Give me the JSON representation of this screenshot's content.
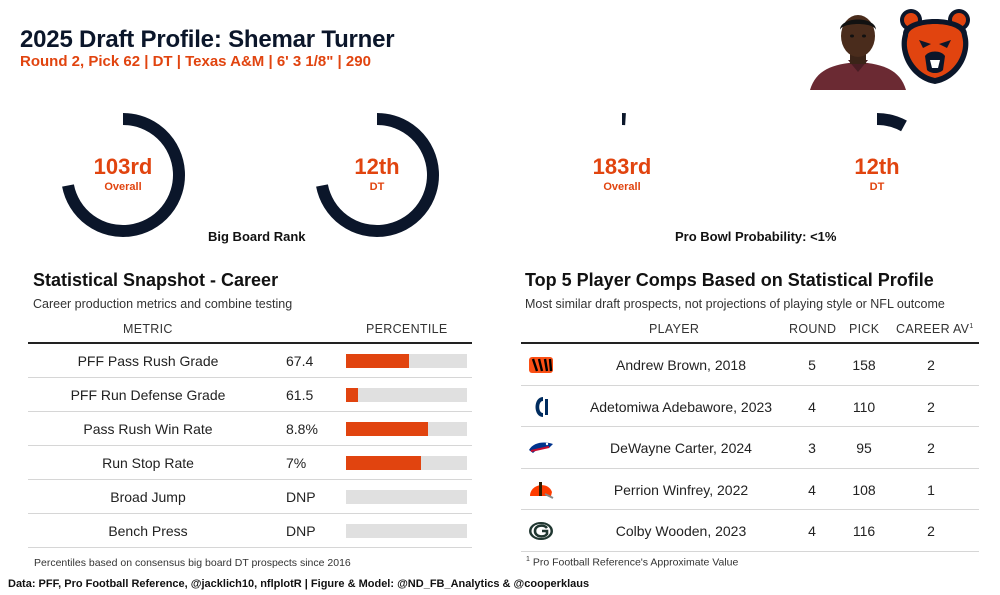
{
  "header": {
    "title": "2025 Draft Profile: Shemar Turner",
    "subtitle": "Round 2, Pick 62 | DT | Texas A&M | 6' 3 1/8\" | 290"
  },
  "colors": {
    "navy": "#0b162a",
    "orange": "#e1440f",
    "track": "#e0e0e0"
  },
  "big_board": {
    "caption": "Big Board Rank",
    "overall": {
      "value": "103rd",
      "label": "Overall",
      "fill_fraction": 0.72
    },
    "position": {
      "value": "12th",
      "label": "DT",
      "fill_fraction": 0.72
    }
  },
  "pro_bowl": {
    "caption": "Pro Bowl Probability: <1%",
    "overall": {
      "value": "183rd",
      "label": "Overall",
      "fill_fraction": 0.01
    },
    "position": {
      "value": "12th",
      "label": "DT",
      "fill_fraction": 0.08
    }
  },
  "snapshot": {
    "title": "Statistical Snapshot - Career",
    "subtitle": "Career production metrics and combine testing",
    "col_metric": "METRIC",
    "col_percentile": "PERCENTILE",
    "rows": [
      {
        "metric": "PFF Pass Rush Grade",
        "value": "67.4",
        "percentile": 0.52
      },
      {
        "metric": "PFF Run Defense Grade",
        "value": "61.5",
        "percentile": 0.1
      },
      {
        "metric": "Pass Rush Win Rate",
        "value": "8.8%",
        "percentile": 0.68
      },
      {
        "metric": "Run Stop Rate",
        "value": "7%",
        "percentile": 0.62
      },
      {
        "metric": "Broad Jump",
        "value": "DNP",
        "percentile": 0
      },
      {
        "metric": "Bench Press",
        "value": "DNP",
        "percentile": 0
      }
    ],
    "footnote": "Percentiles based on consensus big board DT prospects since 2016"
  },
  "comps": {
    "title": "Top 5 Player Comps Based on Statistical Profile",
    "subtitle": "Most similar draft prospects, not projections of playing style or NFL outcome",
    "col_player": "PLAYER",
    "col_round": "ROUND",
    "col_pick": "PICK",
    "col_av": "CAREER AV",
    "col_av_mark": "1",
    "rows": [
      {
        "logo": "bengals-logo",
        "player": "Andrew Brown, 2018",
        "round": "5",
        "pick": "158",
        "av": "2"
      },
      {
        "logo": "colts-logo",
        "player": "Adetomiwa Adebawore, 2023",
        "round": "4",
        "pick": "110",
        "av": "2"
      },
      {
        "logo": "bills-logo",
        "player": "DeWayne Carter, 2024",
        "round": "3",
        "pick": "95",
        "av": "2"
      },
      {
        "logo": "browns-logo",
        "player": "Perrion Winfrey, 2022",
        "round": "4",
        "pick": "108",
        "av": "1"
      },
      {
        "logo": "packers-logo",
        "player": "Colby Wooden, 2023",
        "round": "4",
        "pick": "116",
        "av": "2"
      }
    ],
    "footnote_mark": "1",
    "footnote": " Pro Football Reference's Approximate Value"
  },
  "source": "Data: PFF, Pro Football Reference, @jacklich10, nflplotR | Figure & Model: @ND_FB_Analytics & @cooperklaus"
}
